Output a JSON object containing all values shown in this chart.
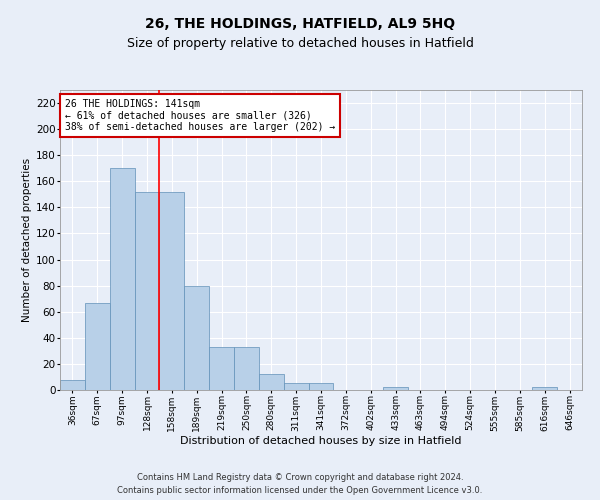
{
  "title": "26, THE HOLDINGS, HATFIELD, AL9 5HQ",
  "subtitle": "Size of property relative to detached houses in Hatfield",
  "xlabel": "Distribution of detached houses by size in Hatfield",
  "ylabel": "Number of detached properties",
  "footer_line1": "Contains HM Land Registry data © Crown copyright and database right 2024.",
  "footer_line2": "Contains public sector information licensed under the Open Government Licence v3.0.",
  "bin_labels": [
    "36sqm",
    "67sqm",
    "97sqm",
    "128sqm",
    "158sqm",
    "189sqm",
    "219sqm",
    "250sqm",
    "280sqm",
    "311sqm",
    "341sqm",
    "372sqm",
    "402sqm",
    "433sqm",
    "463sqm",
    "494sqm",
    "524sqm",
    "555sqm",
    "585sqm",
    "616sqm",
    "646sqm"
  ],
  "bar_values": [
    8,
    67,
    170,
    152,
    152,
    80,
    33,
    33,
    12,
    5,
    5,
    0,
    0,
    2,
    0,
    0,
    0,
    0,
    0,
    2,
    0
  ],
  "bar_color": "#b8d0e8",
  "bar_edge_color": "#6090b8",
  "red_line_x": 3.5,
  "annotation_line1": "26 THE HOLDINGS: 141sqm",
  "annotation_line2": "← 61% of detached houses are smaller (326)",
  "annotation_line3": "38% of semi-detached houses are larger (202) →",
  "annotation_box_color": "#ffffff",
  "annotation_box_edge": "#cc0000",
  "ylim": [
    0,
    230
  ],
  "yticks": [
    0,
    20,
    40,
    60,
    80,
    100,
    120,
    140,
    160,
    180,
    200,
    220
  ],
  "background_color": "#e8eef8",
  "grid_color": "#ffffff",
  "title_fontsize": 10,
  "subtitle_fontsize": 9
}
